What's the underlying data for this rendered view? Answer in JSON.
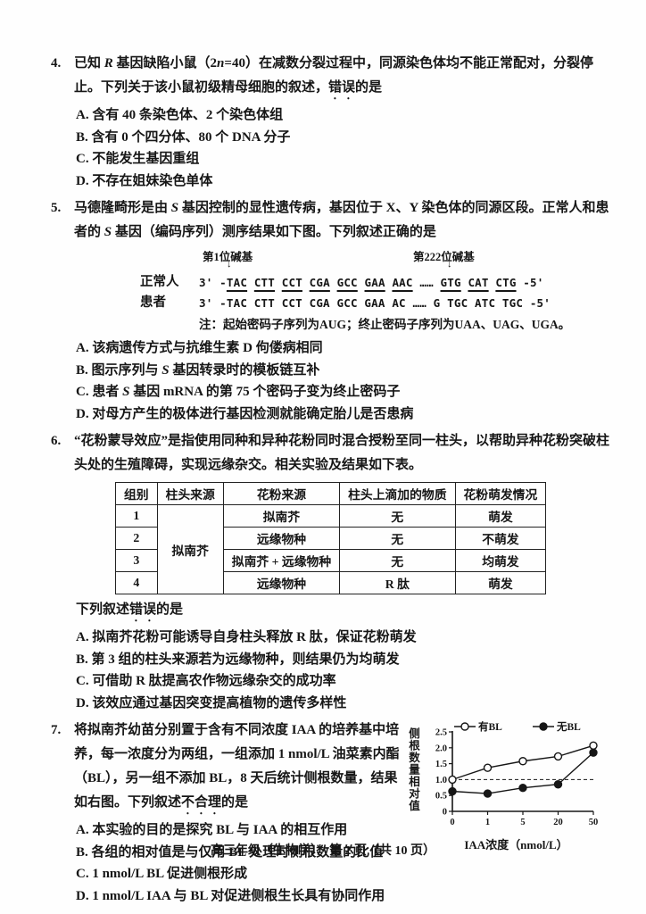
{
  "page": {
    "footer": "高三年级（生物学）　第 2 页（共 10 页）"
  },
  "q4": {
    "number": "4.",
    "stem": [
      {
        "t": "已知 "
      },
      {
        "t": "R",
        "s": "i"
      },
      {
        "t": " 基因缺陷小鼠（2"
      },
      {
        "t": "n",
        "s": "i"
      },
      {
        "t": "=40）在减数分裂过程中，同源染色体均不能正常配对，分裂停止。下列关于该小鼠初级精母细胞的叙述，"
      },
      {
        "t": "错误",
        "s": "em"
      },
      {
        "t": "的是"
      }
    ],
    "options": [
      "A. 含有 40 条染色体、2 个染色体组",
      "B. 含有 0 个四分体、80 个 DNA 分子",
      "C. 不能发生基因重组",
      "D. 不存在姐妹染色单体"
    ]
  },
  "q5": {
    "number": "5.",
    "stem": [
      {
        "t": "马德隆畸形是由 "
      },
      {
        "t": "S",
        "s": "i"
      },
      {
        "t": " 基因控制的显性遗传病，基因位于 X、Y 染色体的同源区段。正常人和患者的 "
      },
      {
        "t": "S",
        "s": "i"
      },
      {
        "t": " 基因（编码序列）测序结果如下图。下列叙述正确的是"
      }
    ],
    "figure": {
      "label_pos1": "第1位碱基",
      "label_pos222": "第222位碱基",
      "arrow": "↓",
      "row_normal_name": "正常人",
      "row_normal_seq": [
        {
          "t": "3' -"
        },
        {
          "t": "TAC",
          "s": "u"
        },
        {
          "t": " "
        },
        {
          "t": "CTT",
          "s": "u"
        },
        {
          "t": " "
        },
        {
          "t": "CCT",
          "s": "u"
        },
        {
          "t": " "
        },
        {
          "t": "CGA",
          "s": "u"
        },
        {
          "t": " "
        },
        {
          "t": "GCC",
          "s": "u"
        },
        {
          "t": " "
        },
        {
          "t": "GAA",
          "s": "u"
        },
        {
          "t": " "
        },
        {
          "t": "AAC",
          "s": "u"
        },
        {
          "t": " …… "
        },
        {
          "t": "GTG",
          "s": "u"
        },
        {
          "t": " "
        },
        {
          "t": "CAT",
          "s": "u"
        },
        {
          "t": " "
        },
        {
          "t": "CTG",
          "s": "u"
        },
        {
          "t": " -5'"
        }
      ],
      "row_patient_name": "患者",
      "row_patient_seq": "3' -TAC CTT CCT CGA GCC GAA AC …… G TGC ATC TGC -5'",
      "note": "注：起始密码子序列为AUG；终止密码子序列为UAA、UAG、UGA。"
    },
    "options": [
      "A. 该病遗传方式与抗维生素 D 佝偻病相同",
      [
        {
          "t": "B. 图示序列与 "
        },
        {
          "t": "S",
          "s": "i"
        },
        {
          "t": " 基因转录时的模板链互补"
        }
      ],
      [
        {
          "t": "C. 患者 "
        },
        {
          "t": "S",
          "s": "i"
        },
        {
          "t": " 基因 mRNA 的第 75 个密码子变为终止密码子"
        }
      ],
      "D. 对母方产生的极体进行基因检测就能确定胎儿是否患病"
    ]
  },
  "q6": {
    "number": "6.",
    "stem": "“花粉蒙导效应”是指使用同种和异种花粉同时混合授粉至同一柱头，以帮助异种花粉突破柱头处的生殖障碍，实现远缘杂交。相关实验及结果如下表。",
    "table": {
      "headers": [
        "组别",
        "柱头来源",
        "花粉来源",
        "柱头上滴加的物质",
        "花粉萌发情况"
      ],
      "stigma_source": "拟南芥",
      "rows": [
        {
          "group": "1",
          "pollen": "拟南芥",
          "substance": "无",
          "result": "萌发"
        },
        {
          "group": "2",
          "pollen": "远缘物种",
          "substance": "无",
          "result": "不萌发"
        },
        {
          "group": "3",
          "pollen": "拟南芥 + 远缘物种",
          "substance": "无",
          "result": "均萌发"
        },
        {
          "group": "4",
          "pollen": "远缘物种",
          "substance": "R 肽",
          "result": "萌发"
        }
      ]
    },
    "leadin": [
      {
        "t": "下列叙述"
      },
      {
        "t": "错误",
        "s": "em"
      },
      {
        "t": "的是"
      }
    ],
    "options": [
      "A. 拟南芥花粉可能诱导自身柱头释放 R 肽，保证花粉萌发",
      "B. 第 3 组的柱头来源若为远缘物种，则结果仍为均萌发",
      "C. 可借助 R 肽提高农作物远缘杂交的成功率",
      "D. 该效应通过基因突变提高植物的遗传多样性"
    ]
  },
  "q7": {
    "number": "7.",
    "stem": [
      {
        "t": "将拟南芥幼苗分别置于含有不同浓度 IAA 的培养基中培养，每一浓度分为两组，一组添加 1 nmol/L 油菜素内酯（BL），另一组不添加 BL，8 天后统计侧根数量，结果如右图。下列叙述"
      },
      {
        "t": "不合理",
        "s": "em"
      },
      {
        "t": "的是"
      }
    ],
    "options": [
      "A. 本实验的目的是探究 BL 与 IAA 的相互作用",
      "B. 各组的相对值是与仅用 BL 处理时侧根数量的比值",
      "C. 1 nmol/L BL 促进侧根形成",
      "D. 1 nmol/L IAA 与 BL 对促进侧根生长具有协同作用"
    ]
  },
  "chart_data": {
    "type": "line",
    "x_categories": [
      "0",
      "1",
      "5",
      "20",
      "50"
    ],
    "series": [
      {
        "name": "有BL",
        "marker": "open",
        "values": [
          1.0,
          1.37,
          1.58,
          1.73,
          2.07
        ]
      },
      {
        "name": "无BL",
        "marker": "filled",
        "values": [
          0.63,
          0.56,
          0.74,
          0.85,
          1.85
        ]
      }
    ],
    "title": "",
    "xlabel": "IAA浓度（nmol/L）",
    "ylabel": "侧根数量相对值",
    "ylim": [
      0,
      2.5
    ],
    "yticks": [
      0,
      0.5,
      1.0,
      1.5,
      2.0,
      2.5
    ],
    "ytick_labels": [
      "0",
      "0.5",
      "1.0",
      "1.5",
      "2.0",
      "2.5"
    ],
    "dashed_line_y": 1.0,
    "legend_position": "top",
    "line_color": "#161616"
  }
}
